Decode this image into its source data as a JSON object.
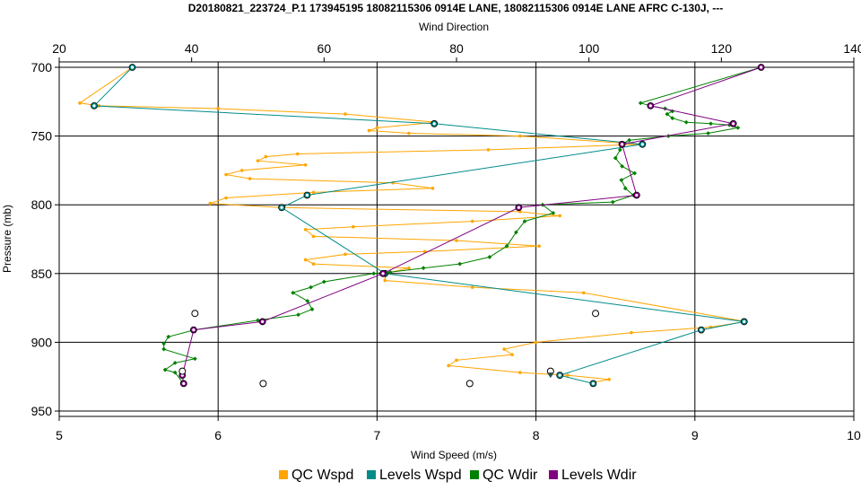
{
  "chart_data": {
    "type": "line",
    "title": "D20180821_223724_P.1 173945195 18082115306 0914E LANE, 18082115306 0914E LANE AFRC C-130J, ---",
    "x_top_label": "Wind Direction",
    "x_bottom_label": "Wind Speed (m/s)",
    "ylabel": "Pressure (mb)",
    "x_top_range": [
      20,
      140
    ],
    "x_bottom_range": [
      5,
      10
    ],
    "y_range": [
      700,
      950
    ],
    "y_inverted": true,
    "x_top_ticks": [
      "20",
      "40",
      "60",
      "80",
      "100",
      "120",
      "140"
    ],
    "x_bottom_ticks": [
      "5",
      "6",
      "7",
      "8",
      "9",
      "10"
    ],
    "y_ticks": [
      "700",
      "750",
      "800",
      "850",
      "900",
      "950"
    ],
    "grid": true,
    "legend_position": "bottom",
    "series": [
      {
        "name": "QC Wspd",
        "color": "#ffa500",
        "axis": "bottom",
        "marker": "dot",
        "points": [
          [
            5.46,
            700
          ],
          [
            5.13,
            726
          ],
          [
            5.25,
            728
          ],
          [
            6.0,
            730
          ],
          [
            6.8,
            734
          ],
          [
            7.37,
            740
          ],
          [
            7.0,
            744
          ],
          [
            6.95,
            746
          ],
          [
            7.2,
            748
          ],
          [
            7.9,
            750
          ],
          [
            8.66,
            756
          ],
          [
            7.7,
            760
          ],
          [
            6.5,
            763
          ],
          [
            6.3,
            765
          ],
          [
            6.25,
            768
          ],
          [
            6.55,
            771
          ],
          [
            6.15,
            775
          ],
          [
            6.05,
            778
          ],
          [
            6.2,
            781
          ],
          [
            7.1,
            784
          ],
          [
            7.35,
            788
          ],
          [
            6.6,
            791
          ],
          [
            6.05,
            795
          ],
          [
            5.95,
            799
          ],
          [
            6.4,
            802
          ],
          [
            7.9,
            805
          ],
          [
            8.15,
            808
          ],
          [
            7.6,
            812
          ],
          [
            6.85,
            816
          ],
          [
            6.55,
            818
          ],
          [
            6.6,
            823
          ],
          [
            7.5,
            826
          ],
          [
            8.02,
            830
          ],
          [
            7.3,
            834
          ],
          [
            6.8,
            836
          ],
          [
            6.55,
            840
          ],
          [
            6.6,
            843
          ],
          [
            7.2,
            846
          ],
          [
            7.05,
            850
          ],
          [
            7.05,
            855
          ],
          [
            7.6,
            860
          ],
          [
            8.3,
            864
          ],
          [
            9.32,
            885
          ],
          [
            9.1,
            889
          ],
          [
            8.6,
            893
          ],
          [
            8.0,
            900
          ],
          [
            7.8,
            905
          ],
          [
            7.85,
            909
          ],
          [
            7.5,
            913
          ],
          [
            7.45,
            917
          ],
          [
            7.9,
            922
          ],
          [
            8.2,
            924
          ],
          [
            8.46,
            927
          ],
          [
            8.37,
            929
          ]
        ]
      },
      {
        "name": "Levels Wspd",
        "color": "#008b8b",
        "axis": "bottom",
        "marker": "circle",
        "points": [
          [
            5.46,
            700
          ],
          [
            5.22,
            728
          ],
          [
            7.36,
            741
          ],
          [
            8.67,
            756
          ],
          [
            6.56,
            793
          ],
          [
            6.4,
            802
          ],
          [
            7.05,
            850
          ],
          [
            9.31,
            885
          ],
          [
            9.04,
            891
          ],
          [
            8.15,
            924
          ],
          [
            8.36,
            930
          ]
        ]
      },
      {
        "name": "QC Wdir",
        "color": "#008000",
        "axis": "top",
        "marker": "diamond",
        "points": [
          [
            126.0,
            700
          ],
          [
            107.8,
            726
          ],
          [
            109.3,
            728
          ],
          [
            111.5,
            730
          ],
          [
            112.6,
            732
          ],
          [
            111.8,
            734
          ],
          [
            112.6,
            737
          ],
          [
            114.7,
            740
          ],
          [
            118.4,
            741
          ],
          [
            121.2,
            742
          ],
          [
            122.5,
            744
          ],
          [
            118.0,
            748
          ],
          [
            112.0,
            750
          ],
          [
            106.1,
            753
          ],
          [
            104.8,
            756
          ],
          [
            104.7,
            760
          ],
          [
            104.0,
            766
          ],
          [
            105.0,
            772
          ],
          [
            106.9,
            777
          ],
          [
            104.9,
            782
          ],
          [
            105.5,
            788
          ],
          [
            106.7,
            793
          ],
          [
            103.6,
            798
          ],
          [
            93.0,
            800
          ],
          [
            94.6,
            806
          ],
          [
            90.3,
            812
          ],
          [
            89.0,
            820
          ],
          [
            87.6,
            830
          ],
          [
            85.0,
            838
          ],
          [
            80.5,
            843
          ],
          [
            75.0,
            846
          ],
          [
            70.0,
            849
          ],
          [
            67.5,
            850
          ],
          [
            60.0,
            856
          ],
          [
            58.0,
            860
          ],
          [
            55.3,
            864
          ],
          [
            57.5,
            870
          ],
          [
            58.2,
            876
          ],
          [
            56.1,
            880
          ],
          [
            50.0,
            884
          ],
          [
            40.4,
            891
          ],
          [
            36.5,
            896
          ],
          [
            35.8,
            901
          ],
          [
            35.8,
            905
          ],
          [
            40.5,
            912
          ],
          [
            37.5,
            915
          ],
          [
            36.0,
            920
          ],
          [
            37.5,
            922
          ],
          [
            38.6,
            929
          ]
        ]
      },
      {
        "name": "Levels Wdir",
        "color": "#800080",
        "axis": "top",
        "marker": "circle",
        "points": [
          [
            126.0,
            700
          ],
          [
            109.3,
            728
          ],
          [
            121.8,
            741
          ],
          [
            105.0,
            756
          ],
          [
            107.2,
            793
          ],
          [
            89.4,
            802
          ],
          [
            68.9,
            850
          ],
          [
            50.7,
            885
          ],
          [
            40.3,
            891
          ],
          [
            38.6,
            924
          ],
          [
            38.8,
            930
          ]
        ]
      }
    ],
    "stray_points": [
      [
        40.5,
        879
      ],
      [
        101.0,
        879
      ],
      [
        50.8,
        930
      ],
      [
        82.0,
        930
      ],
      [
        38.6,
        921
      ],
      [
        94.2,
        921
      ]
    ]
  }
}
